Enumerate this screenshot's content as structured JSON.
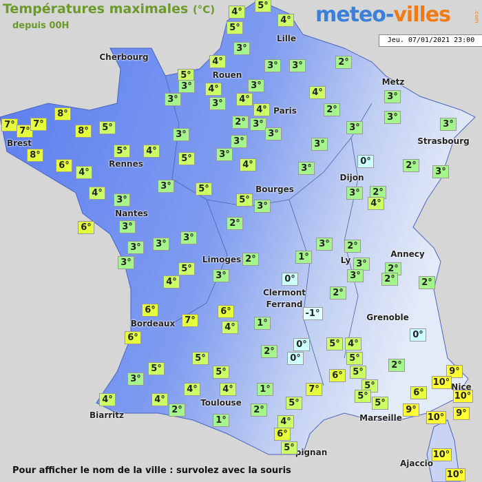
{
  "header": {
    "title": "Températures maximales",
    "unit": "(°C)",
    "subtitle": "depuis 00H",
    "logo_part1": "meteo-",
    "logo_part2": "villes",
    "logo_domain": ".com",
    "date": "Jeu. 07/01/2021 23:00"
  },
  "footer": "Pour afficher le nom de la ville : survolez avec la souris",
  "cities": [
    "Cherbourg",
    "Lille",
    "Rouen",
    "Metz",
    "Paris",
    "Brest",
    "Strasbourg",
    "Rennes",
    "Dijon",
    "Bourges",
    "Nantes",
    "Annecy",
    "Limoges",
    "Ly",
    "Clermont",
    "Ferrand",
    "Grenoble",
    "Bordeaux",
    "Nice",
    "Toulouse",
    "Biarritz",
    "Marseille",
    "pignan",
    "Ajaccio"
  ],
  "temperatures": [
    "8°",
    "7°",
    "7°",
    "7°",
    "8°",
    "5°",
    "8°",
    "6°",
    "4°",
    "4°",
    "5°",
    "4°",
    "5°",
    "3°",
    "4°",
    "3°",
    "3°",
    "2°",
    "5°",
    "3°",
    "4°",
    "3°",
    "3°",
    "3°",
    "4°",
    "4°",
    "3°",
    "4°",
    "2°",
    "3°",
    "2°",
    "3°",
    "3°",
    "3°",
    "3°",
    "3°",
    "3°",
    "3°",
    "3°",
    "5°",
    "4°",
    "5°",
    "4°",
    "0°",
    "2°",
    "3°",
    "3°",
    "3°",
    "5°",
    "3°",
    "2°",
    "4°",
    "4°",
    "3°",
    "5°",
    "3°",
    "2°",
    "6°",
    "3°",
    "3°",
    "3°",
    "3°",
    "3°",
    "2°",
    "3°",
    "2°",
    "1°",
    "3°",
    "2°",
    "5°",
    "3°",
    "2°",
    "2°",
    "4°",
    "3°",
    "0°",
    "2°",
    "-1°",
    "6°",
    "6°",
    "7°",
    "4°",
    "1°",
    "6°",
    "0°",
    "0°",
    "5°",
    "4°",
    "2°",
    "0°",
    "5°",
    "5°",
    "2°",
    "5°",
    "5°",
    "6°",
    "5°",
    "9°",
    "3°",
    "10°",
    "5°",
    "4°",
    "4°",
    "1°",
    "7°",
    "6°",
    "10°",
    "5°",
    "4°",
    "2°",
    "5°",
    "5°",
    "4°",
    "2°",
    "9°",
    "9°",
    "10°",
    "1°",
    "4°",
    "6°",
    "5°",
    "10°",
    "10°"
  ]
}
